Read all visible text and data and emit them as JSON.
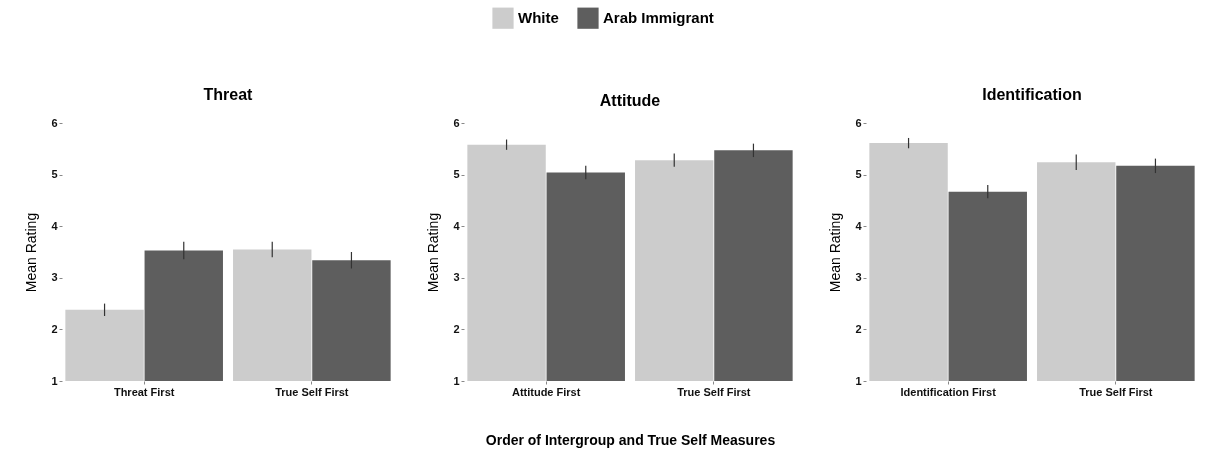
{
  "chart_data": [
    {
      "type": "bar",
      "title": "Threat",
      "ylabel": "Mean Rating",
      "categories": [
        "Threat First",
        "True Self First"
      ],
      "ylim": [
        1,
        6
      ],
      "yticks": [
        1,
        2,
        3,
        4,
        5,
        6
      ],
      "grid": false,
      "series": [
        {
          "color": "#cccccc",
          "values": [
            2.38,
            3.55
          ],
          "errors": [
            0.12,
            0.15
          ]
        },
        {
          "color": "#5e5e5e",
          "values": [
            3.53,
            3.34
          ],
          "errors": [
            0.17,
            0.16
          ]
        }
      ]
    },
    {
      "type": "bar",
      "title": "Attitude",
      "ylabel": "Mean Rating",
      "xlabel": "Order of Intergroup and True Self Measures",
      "categories": [
        "Attitude First",
        "True Self First"
      ],
      "ylim": [
        1,
        6
      ],
      "yticks": [
        1,
        2,
        3,
        4,
        5,
        6
      ],
      "grid": false,
      "legend": "top",
      "series": [
        {
          "name": "White",
          "color": "#cccccc",
          "values": [
            5.58,
            5.28
          ],
          "errors": [
            0.1,
            0.13
          ]
        },
        {
          "name": "Arab Immigrant",
          "color": "#5e5e5e",
          "values": [
            5.04,
            5.47
          ],
          "errors": [
            0.13,
            0.13
          ]
        }
      ]
    },
    {
      "type": "bar",
      "title": "Identification",
      "ylabel": "Mean Rating",
      "categories": [
        "Identification First",
        "True Self First"
      ],
      "ylim": [
        1,
        6
      ],
      "yticks": [
        1,
        2,
        3,
        4,
        5,
        6
      ],
      "grid": false,
      "series": [
        {
          "color": "#cccccc",
          "values": [
            5.61,
            5.24
          ],
          "errors": [
            0.1,
            0.15
          ]
        },
        {
          "color": "#5e5e5e",
          "values": [
            4.67,
            5.17
          ],
          "errors": [
            0.13,
            0.14
          ]
        }
      ]
    }
  ]
}
